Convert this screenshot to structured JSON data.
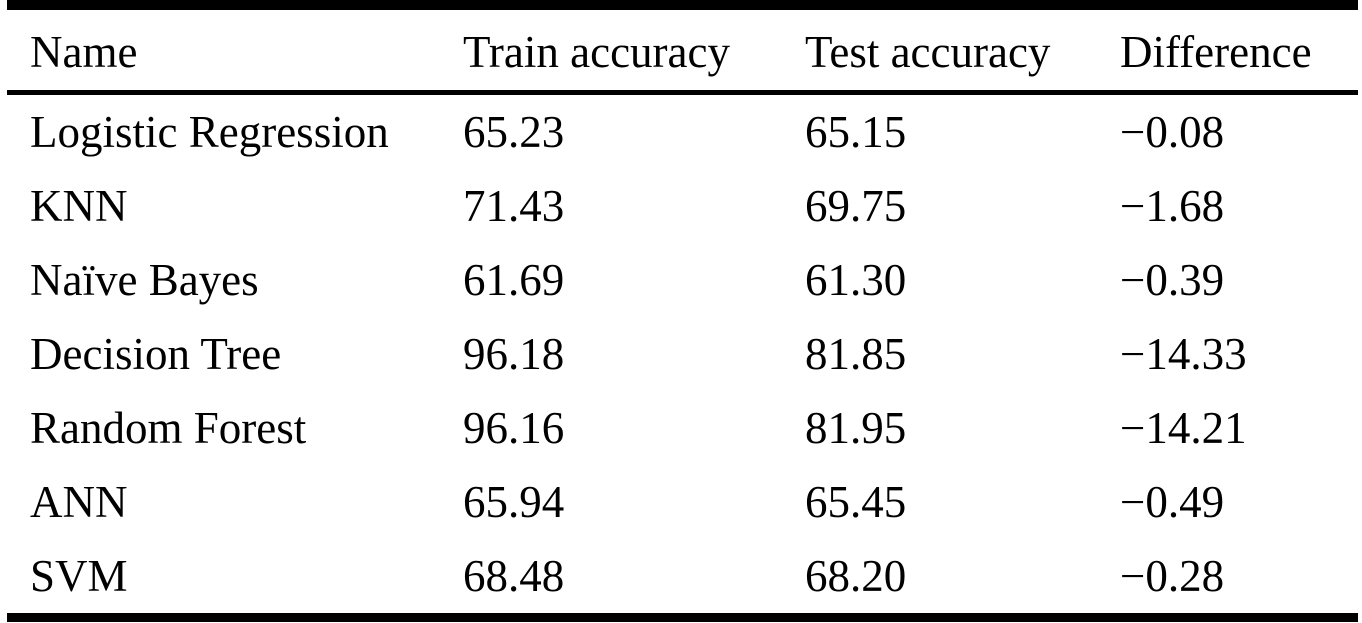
{
  "page": {
    "background_color": "#ffffff",
    "text_color": "#000000",
    "rule_color": "#000000"
  },
  "table": {
    "columns": [
      {
        "label": "Name"
      },
      {
        "label": "Train accuracy"
      },
      {
        "label": "Test accuracy"
      },
      {
        "label": "Difference"
      }
    ],
    "rows": [
      {
        "name": "Logistic Regression",
        "train": "65.23",
        "test": "65.15",
        "difference": "−0.08"
      },
      {
        "name": "KNN",
        "train": "71.43",
        "test": "69.75",
        "difference": "−1.68"
      },
      {
        "name": "Naïve Bayes",
        "train": "61.69",
        "test": "61.30",
        "difference": "−0.39"
      },
      {
        "name": "Decision Tree",
        "train": "96.18",
        "test": "81.85",
        "difference": "−14.33"
      },
      {
        "name": "Random Forest",
        "train": "96.16",
        "test": "81.95",
        "difference": "−14.21"
      },
      {
        "name": "ANN",
        "train": "65.94",
        "test": "65.45",
        "difference": "−0.49"
      },
      {
        "name": "SVM",
        "train": "68.48",
        "test": "68.20",
        "difference": "−0.28"
      }
    ]
  }
}
